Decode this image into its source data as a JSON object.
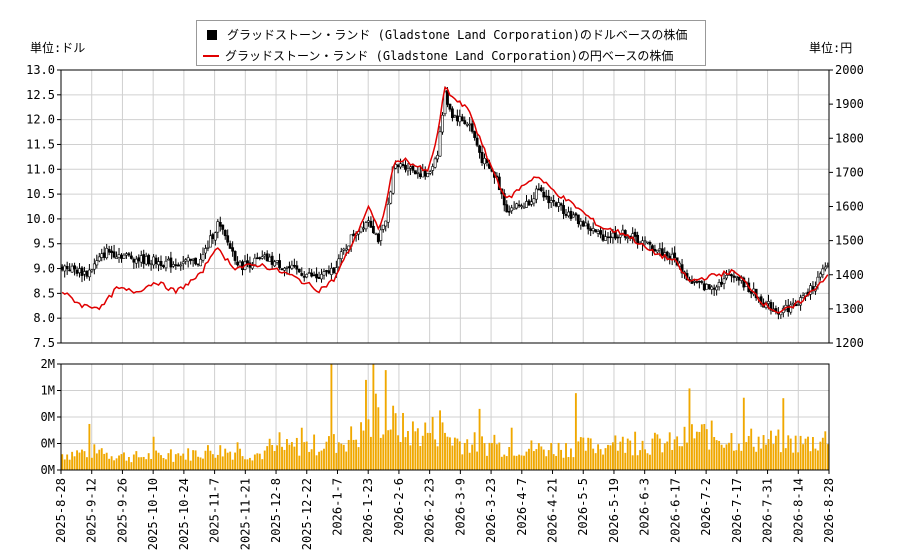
{
  "legend": {
    "usd_label": "グラッドストーン・ランド (Gladstone Land Corporation)のドルベースの株価",
    "jpy_label": "グラッドストーン・ランド (Gladstone Land Corporation)の円ベースの株価"
  },
  "units": {
    "left": "単位:ドル",
    "right": "単位:円"
  },
  "chart_data": {
    "type": "candlestick+line+bar",
    "x_ticks": [
      "2025-8-28",
      "2025-9-12",
      "2025-9-26",
      "2025-10-10",
      "2025-10-24",
      "2025-11-7",
      "2025-11-21",
      "2025-12-8",
      "2025-12-22",
      "2026-1-7",
      "2026-1-23",
      "2026-2-6",
      "2026-2-23",
      "2026-3-9",
      "2026-3-23",
      "2026-4-7",
      "2026-4-21",
      "2026-5-5",
      "2026-5-19",
      "2026-6-3",
      "2026-6-17",
      "2026-7-2",
      "2026-7-17",
      "2026-7-31",
      "2026-8-14",
      "2026-8-28"
    ],
    "y_left": {
      "ticks": [
        "13.0",
        "12.5",
        "12.0",
        "11.5",
        "11.0",
        "10.5",
        "10.0",
        "9.5",
        "9.0",
        "8.5",
        "8.0",
        "7.5"
      ],
      "range": [
        7.5,
        13.0
      ]
    },
    "y_right": {
      "ticks": [
        "2000",
        "1900",
        "1800",
        "1700",
        "1600",
        "1500",
        "1400",
        "1300",
        "1200"
      ],
      "range": [
        1200,
        2000
      ]
    },
    "volume": {
      "ticks": [
        "2M",
        "1M",
        "0M",
        "0M",
        "0M"
      ],
      "range": [
        0,
        2000000
      ]
    },
    "usd_anchors": [
      [
        0,
        9.05
      ],
      [
        10,
        8.9
      ],
      [
        18,
        9.35
      ],
      [
        30,
        9.2
      ],
      [
        44,
        9.1
      ],
      [
        56,
        9.15
      ],
      [
        63,
        9.9
      ],
      [
        72,
        9.05
      ],
      [
        82,
        9.2
      ],
      [
        92,
        9.0
      ],
      [
        104,
        8.8
      ],
      [
        110,
        9.0
      ],
      [
        118,
        9.7
      ],
      [
        124,
        10.0
      ],
      [
        128,
        9.6
      ],
      [
        131,
        9.9
      ],
      [
        134,
        11.0
      ],
      [
        138,
        11.1
      ],
      [
        148,
        10.85
      ],
      [
        152,
        11.35
      ],
      [
        155,
        12.5
      ],
      [
        158,
        12.1
      ],
      [
        165,
        11.9
      ],
      [
        170,
        11.2
      ],
      [
        176,
        10.8
      ],
      [
        180,
        10.2
      ],
      [
        188,
        10.3
      ],
      [
        192,
        10.55
      ],
      [
        200,
        10.3
      ],
      [
        208,
        10.0
      ],
      [
        218,
        9.65
      ],
      [
        228,
        9.7
      ],
      [
        238,
        9.45
      ],
      [
        248,
        9.2
      ],
      [
        254,
        8.75
      ],
      [
        262,
        8.6
      ],
      [
        272,
        8.9
      ],
      [
        279,
        8.55
      ],
      [
        284,
        8.3
      ],
      [
        290,
        8.15
      ],
      [
        296,
        8.25
      ],
      [
        302,
        8.5
      ],
      [
        310,
        9.05
      ]
    ],
    "jpy_anchors": [
      [
        0,
        1350
      ],
      [
        8,
        1310
      ],
      [
        16,
        1305
      ],
      [
        22,
        1360
      ],
      [
        30,
        1350
      ],
      [
        38,
        1380
      ],
      [
        46,
        1350
      ],
      [
        56,
        1400
      ],
      [
        62,
        1480
      ],
      [
        70,
        1420
      ],
      [
        80,
        1430
      ],
      [
        92,
        1400
      ],
      [
        104,
        1355
      ],
      [
        110,
        1385
      ],
      [
        118,
        1500
      ],
      [
        124,
        1600
      ],
      [
        128,
        1530
      ],
      [
        131,
        1600
      ],
      [
        134,
        1720
      ],
      [
        138,
        1740
      ],
      [
        148,
        1700
      ],
      [
        152,
        1810
      ],
      [
        155,
        1950
      ],
      [
        158,
        1920
      ],
      [
        165,
        1880
      ],
      [
        170,
        1780
      ],
      [
        176,
        1680
      ],
      [
        180,
        1620
      ],
      [
        188,
        1670
      ],
      [
        192,
        1690
      ],
      [
        200,
        1640
      ],
      [
        208,
        1600
      ],
      [
        218,
        1540
      ],
      [
        228,
        1520
      ],
      [
        238,
        1470
      ],
      [
        248,
        1440
      ],
      [
        254,
        1380
      ],
      [
        262,
        1395
      ],
      [
        272,
        1410
      ],
      [
        279,
        1360
      ],
      [
        284,
        1315
      ],
      [
        290,
        1290
      ],
      [
        296,
        1305
      ],
      [
        302,
        1340
      ],
      [
        310,
        1400
      ]
    ],
    "volume_anchors": [
      [
        0,
        300000
      ],
      [
        12,
        350000
      ],
      [
        28,
        250000
      ],
      [
        48,
        280000
      ],
      [
        62,
        380000
      ],
      [
        80,
        300000
      ],
      [
        95,
        450000
      ],
      [
        110,
        500000
      ],
      [
        120,
        650000
      ],
      [
        130,
        1000000
      ],
      [
        140,
        700000
      ],
      [
        152,
        750000
      ],
      [
        160,
        550000
      ],
      [
        175,
        450000
      ],
      [
        195,
        400000
      ],
      [
        215,
        450000
      ],
      [
        235,
        500000
      ],
      [
        250,
        500000
      ],
      [
        255,
        700000
      ],
      [
        270,
        600000
      ],
      [
        285,
        550000
      ],
      [
        300,
        500000
      ],
      [
        310,
        600000
      ]
    ]
  }
}
